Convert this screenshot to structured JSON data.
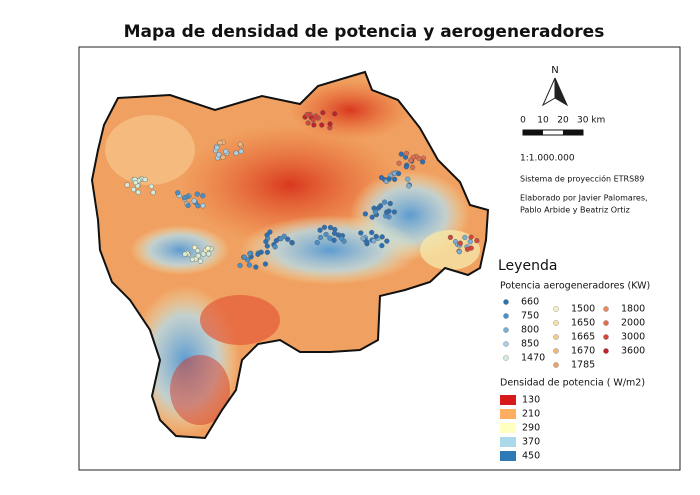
{
  "title": "Mapa de densidad de potencia y aerogeneradores",
  "north": "N",
  "scale_bar": {
    "labels": [
      "0",
      "10",
      "20",
      "30 km"
    ]
  },
  "scale": "1:1.000.000",
  "projection": "Sistema de proyección ETRS89",
  "credits": [
    "Elaborado por Javier Palomares,",
    "Pablo Arbide y Beatriz Ortiz"
  ],
  "legend": {
    "title": "Leyenda",
    "turbines": {
      "title": "Potencia aerogeneradores (KW)",
      "classes": [
        {
          "label": "660",
          "color": "#2c6fb3"
        },
        {
          "label": "750",
          "color": "#4a8fc6"
        },
        {
          "label": "800",
          "color": "#7aaed4"
        },
        {
          "label": "850",
          "color": "#a9d0e2"
        },
        {
          "label": "1470",
          "color": "#d4ecd9"
        },
        {
          "label": "1500",
          "color": "#f3f1c4"
        },
        {
          "label": "1650",
          "color": "#f7e0a4"
        },
        {
          "label": "1665",
          "color": "#f5cb8d"
        },
        {
          "label": "1670",
          "color": "#f2b67b"
        },
        {
          "label": "1785",
          "color": "#eea06a"
        },
        {
          "label": "1800",
          "color": "#e88a5a"
        },
        {
          "label": "2000",
          "color": "#df6e4e"
        },
        {
          "label": "3000",
          "color": "#d3473b"
        },
        {
          "label": "3600",
          "color": "#bf222b"
        }
      ]
    },
    "density": {
      "title": "Densidad de potencia ( W/m2)",
      "classes": [
        {
          "label": "130",
          "color": "#d7191c"
        },
        {
          "label": "210",
          "color": "#fdae61"
        },
        {
          "label": "290",
          "color": "#ffffbf"
        },
        {
          "label": "370",
          "color": "#abd9e9"
        },
        {
          "label": "450",
          "color": "#2c7bb6"
        }
      ]
    }
  }
}
